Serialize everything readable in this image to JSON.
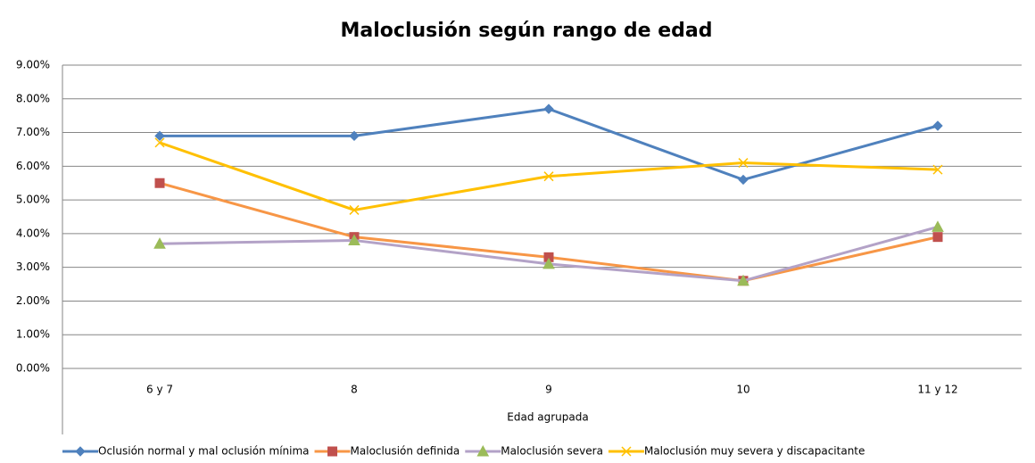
{
  "chart_data": {
    "type": "line",
    "title": "Maloclusión  según rango de edad",
    "x_label": "Edad agrupada",
    "categories": [
      "6 y 7",
      "8",
      "9",
      "10",
      "11 y 12"
    ],
    "series": [
      {
        "name": "Oclusión normal y mal oclusión mínima",
        "color": "#4f81bd",
        "marker_color": "#4f81bd",
        "marker": "diamond",
        "values": [
          6.9,
          6.9,
          7.7,
          5.6,
          7.2
        ]
      },
      {
        "name": "Maloclusión definida",
        "color": "#f79646",
        "marker_color": "#c0504d",
        "marker": "square",
        "values": [
          5.5,
          3.9,
          3.3,
          2.6,
          3.9
        ]
      },
      {
        "name": "Maloclusión severa",
        "color": "#b3a2c7",
        "marker_color": "#9bbb59",
        "marker": "triangle",
        "values": [
          3.7,
          3.8,
          3.1,
          2.6,
          4.2
        ]
      },
      {
        "name": "Maloclusión muy severa y discapacitante",
        "color": "#ffc000",
        "marker_color": "#ffc000",
        "marker": "x",
        "values": [
          6.7,
          4.7,
          5.7,
          6.1,
          5.9
        ]
      }
    ],
    "ylim": [
      0,
      9
    ],
    "yticks": [
      {
        "value": 0,
        "label": "0.00%"
      },
      {
        "value": 1,
        "label": "1.00%"
      },
      {
        "value": 2,
        "label": "2.00%"
      },
      {
        "value": 3,
        "label": "3.00%"
      },
      {
        "value": 4,
        "label": "4.00%"
      },
      {
        "value": 5,
        "label": "5.00%"
      },
      {
        "value": 6,
        "label": "6.00%"
      },
      {
        "value": 7,
        "label": "7.00%"
      },
      {
        "value": 8,
        "label": "8.00%"
      },
      {
        "value": 9,
        "label": "9.00%"
      }
    ],
    "grid": true
  }
}
